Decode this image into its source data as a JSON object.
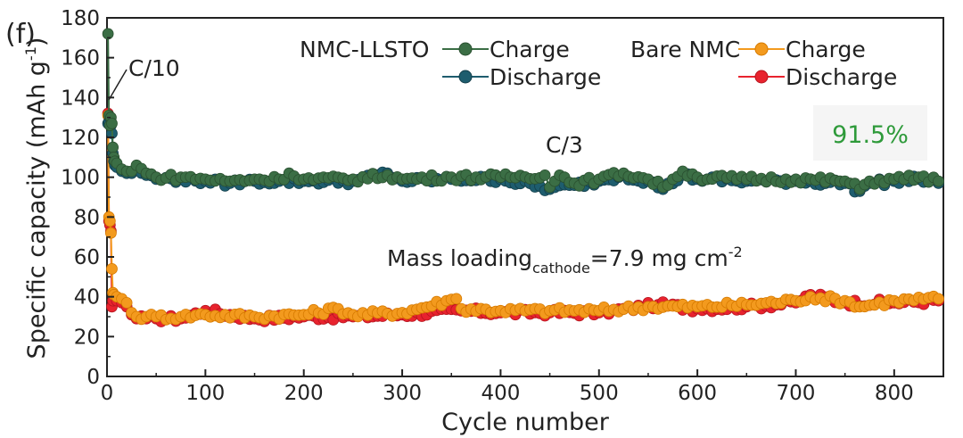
{
  "colors": {
    "nmc_llsto_charge": "#3b6e45",
    "nmc_llsto_discharge": "#1e5d6e",
    "bare_charge": "#f39a1e",
    "bare_discharge": "#e8232e",
    "retention": "#2e9a3a",
    "retention_box": "#f5f5f5"
  },
  "chart_data": {
    "type": "line",
    "panel_label": "(f)",
    "xlabel": "Cycle number",
    "ylabel_main": "Specific capacity (mAh g",
    "ylabel_sup": "-1",
    "ylabel_close": ")",
    "xlim": [
      0,
      850
    ],
    "ylim": [
      0,
      180
    ],
    "x_ticks": [
      0,
      100,
      200,
      300,
      400,
      500,
      600,
      700,
      800
    ],
    "y_ticks": [
      0,
      20,
      40,
      60,
      80,
      100,
      120,
      140,
      160,
      180
    ],
    "legend": {
      "group1_label": "NMC-LLSTO",
      "group2_label": "Bare NMC",
      "charge_label": "Charge",
      "discharge_label": "Discharge"
    },
    "annotations": {
      "rate_initial": "C/10",
      "rate_main": "C/3",
      "mass_loading_prefix": "Mass loading",
      "mass_loading_sub": "cathode",
      "mass_loading_value": "=7.9 mg cm",
      "mass_loading_sup": "-2",
      "retention": "91.5%"
    },
    "series": [
      {
        "name": "NMC-LLSTO Charge",
        "key": "nmc_llsto_charge",
        "points": [
          [
            1,
            172
          ],
          [
            2,
            131
          ],
          [
            3,
            126
          ],
          [
            4,
            130
          ],
          [
            5,
            127
          ],
          [
            6,
            115
          ],
          [
            7,
            110
          ],
          [
            8,
            108
          ],
          [
            10,
            107
          ],
          [
            15,
            104
          ],
          [
            20,
            103
          ],
          [
            25,
            103
          ],
          [
            30,
            106
          ],
          [
            40,
            102
          ],
          [
            50,
            100
          ],
          [
            75,
            100
          ],
          [
            100,
            99
          ],
          [
            125,
            98
          ],
          [
            150,
            99
          ],
          [
            175,
            99
          ],
          [
            185,
            102
          ],
          [
            200,
            99
          ],
          [
            250,
            99
          ],
          [
            285,
            101
          ],
          [
            300,
            99
          ],
          [
            350,
            100
          ],
          [
            400,
            100
          ],
          [
            445,
            101
          ],
          [
            450,
            95
          ],
          [
            460,
            101
          ],
          [
            475,
            97
          ],
          [
            500,
            99
          ],
          [
            525,
            102
          ],
          [
            550,
            99
          ],
          [
            565,
            95
          ],
          [
            575,
            99
          ],
          [
            585,
            103
          ],
          [
            600,
            100
          ],
          [
            650,
            99
          ],
          [
            700,
            99
          ],
          [
            750,
            98
          ],
          [
            765,
            94
          ],
          [
            775,
            98
          ],
          [
            800,
            99
          ],
          [
            825,
            100
          ],
          [
            845,
            98
          ]
        ]
      },
      {
        "name": "NMC-LLSTO Discharge",
        "key": "nmc_llsto_discharge",
        "points": [
          [
            1,
            127
          ],
          [
            2,
            128
          ],
          [
            3,
            130
          ],
          [
            4,
            126
          ],
          [
            5,
            122
          ],
          [
            6,
            112
          ],
          [
            7,
            108
          ],
          [
            8,
            106
          ],
          [
            10,
            105
          ],
          [
            15,
            103
          ],
          [
            20,
            102
          ],
          [
            25,
            102
          ],
          [
            30,
            104
          ],
          [
            40,
            101
          ],
          [
            50,
            99
          ],
          [
            75,
            99
          ],
          [
            100,
            98
          ],
          [
            125,
            97
          ],
          [
            150,
            98
          ],
          [
            175,
            98
          ],
          [
            200,
            98
          ],
          [
            250,
            98
          ],
          [
            285,
            102
          ],
          [
            300,
            98
          ],
          [
            350,
            99
          ],
          [
            400,
            99
          ],
          [
            450,
            94
          ],
          [
            475,
            96
          ],
          [
            500,
            98
          ],
          [
            525,
            101
          ],
          [
            550,
            98
          ],
          [
            565,
            94
          ],
          [
            585,
            101
          ],
          [
            600,
            99
          ],
          [
            650,
            98
          ],
          [
            700,
            98
          ],
          [
            750,
            97
          ],
          [
            765,
            93
          ],
          [
            775,
            97
          ],
          [
            800,
            98
          ],
          [
            825,
            99
          ],
          [
            845,
            97
          ]
        ]
      },
      {
        "name": "Bare NMC Charge",
        "key": "bare_charge",
        "points": [
          [
            1,
            131
          ],
          [
            2,
            80
          ],
          [
            3,
            78
          ],
          [
            4,
            72
          ],
          [
            5,
            54
          ],
          [
            6,
            42
          ],
          [
            7,
            41
          ],
          [
            10,
            40
          ],
          [
            15,
            39
          ],
          [
            20,
            37
          ],
          [
            25,
            32
          ],
          [
            30,
            30
          ],
          [
            40,
            30
          ],
          [
            50,
            30
          ],
          [
            75,
            30
          ],
          [
            100,
            31
          ],
          [
            150,
            30
          ],
          [
            200,
            31
          ],
          [
            235,
            34
          ],
          [
            250,
            31
          ],
          [
            300,
            32
          ],
          [
            355,
            39
          ],
          [
            360,
            34
          ],
          [
            400,
            33
          ],
          [
            450,
            33
          ],
          [
            500,
            33
          ],
          [
            550,
            35
          ],
          [
            600,
            35
          ],
          [
            650,
            36
          ],
          [
            700,
            38
          ],
          [
            715,
            40
          ],
          [
            750,
            38
          ],
          [
            765,
            35
          ],
          [
            800,
            38
          ],
          [
            845,
            39
          ]
        ]
      },
      {
        "name": "Bare NMC Discharge",
        "key": "bare_discharge",
        "points": [
          [
            1,
            132
          ],
          [
            2,
            78
          ],
          [
            3,
            76
          ],
          [
            4,
            73
          ],
          [
            5,
            35
          ],
          [
            6,
            38
          ],
          [
            10,
            38
          ],
          [
            15,
            37
          ],
          [
            20,
            35
          ],
          [
            25,
            31
          ],
          [
            30,
            29
          ],
          [
            40,
            29
          ],
          [
            50,
            29
          ],
          [
            75,
            29
          ],
          [
            100,
            33
          ],
          [
            150,
            29
          ],
          [
            200,
            30
          ],
          [
            250,
            30
          ],
          [
            300,
            31
          ],
          [
            360,
            33
          ],
          [
            400,
            32
          ],
          [
            450,
            32
          ],
          [
            500,
            32
          ],
          [
            560,
            36
          ],
          [
            600,
            34
          ],
          [
            650,
            35
          ],
          [
            700,
            37
          ],
          [
            715,
            41
          ],
          [
            750,
            37
          ],
          [
            800,
            37
          ],
          [
            845,
            38
          ]
        ]
      }
    ]
  }
}
